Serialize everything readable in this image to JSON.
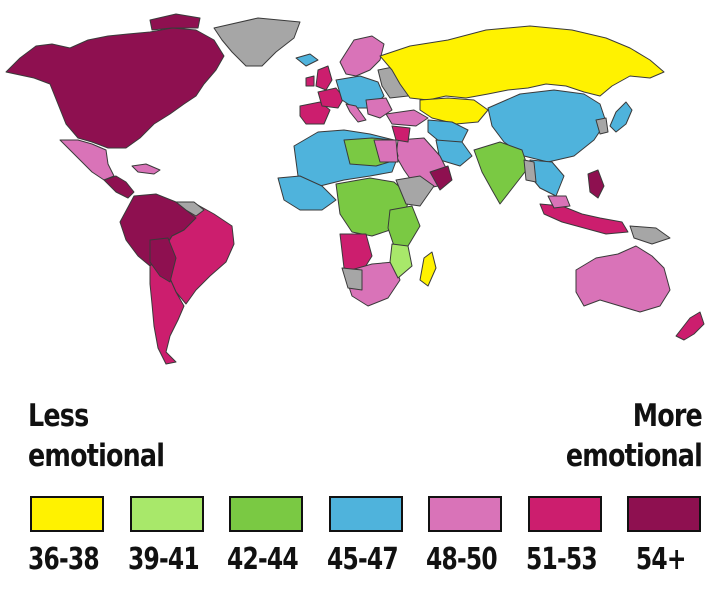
{
  "legend": {
    "less_label_line1": "Less",
    "less_label_line2": "emotional",
    "more_label_line1": "More",
    "more_label_line2": "emotional",
    "items": [
      {
        "label": "36-38",
        "color": "#fff200"
      },
      {
        "label": "39-41",
        "color": "#a8e86a"
      },
      {
        "label": "42-44",
        "color": "#7ac943"
      },
      {
        "label": "45-47",
        "color": "#4fb3dc"
      },
      {
        "label": "48-50",
        "color": "#d973b8"
      },
      {
        "label": "51-53",
        "color": "#cc1e6e"
      },
      {
        "label": "54+",
        "color": "#8e1050"
      }
    ]
  },
  "map": {
    "no_data_color": "#a6a6a6"
  }
}
